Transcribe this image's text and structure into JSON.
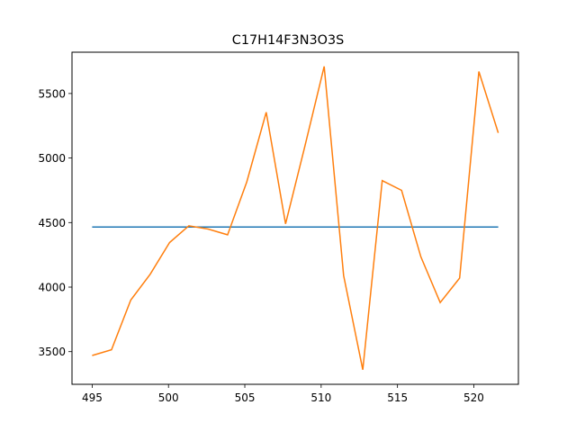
{
  "chart_data": {
    "type": "line",
    "title": "C17H14F3N3O3S",
    "xlabel": "",
    "ylabel": "",
    "xlim": [
      493.68,
      522.92
    ],
    "ylim": [
      3247,
      5820
    ],
    "xticks": [
      495,
      500,
      505,
      510,
      515,
      520
    ],
    "yticks": [
      3500,
      4000,
      4500,
      5000,
      5500
    ],
    "grid": false,
    "series": [
      {
        "color": "#1f77b4",
        "x": [
          495.0,
          521.6
        ],
        "y": [
          4466,
          4466
        ]
      },
      {
        "color": "#ff7f0e",
        "x": [
          495.0,
          496.27,
          497.53,
          498.8,
          500.07,
          501.33,
          502.6,
          503.87,
          505.13,
          506.4,
          507.67,
          508.93,
          510.2,
          511.47,
          512.73,
          514.0,
          515.27,
          516.53,
          517.8,
          519.07,
          520.33,
          521.6
        ],
        "y": [
          3470,
          3515,
          3900,
          4100,
          4345,
          4475,
          4450,
          4405,
          4815,
          5355,
          4490,
          5090,
          5710,
          4090,
          3360,
          4825,
          4750,
          4235,
          3880,
          4070,
          5670,
          5195
        ]
      }
    ]
  }
}
